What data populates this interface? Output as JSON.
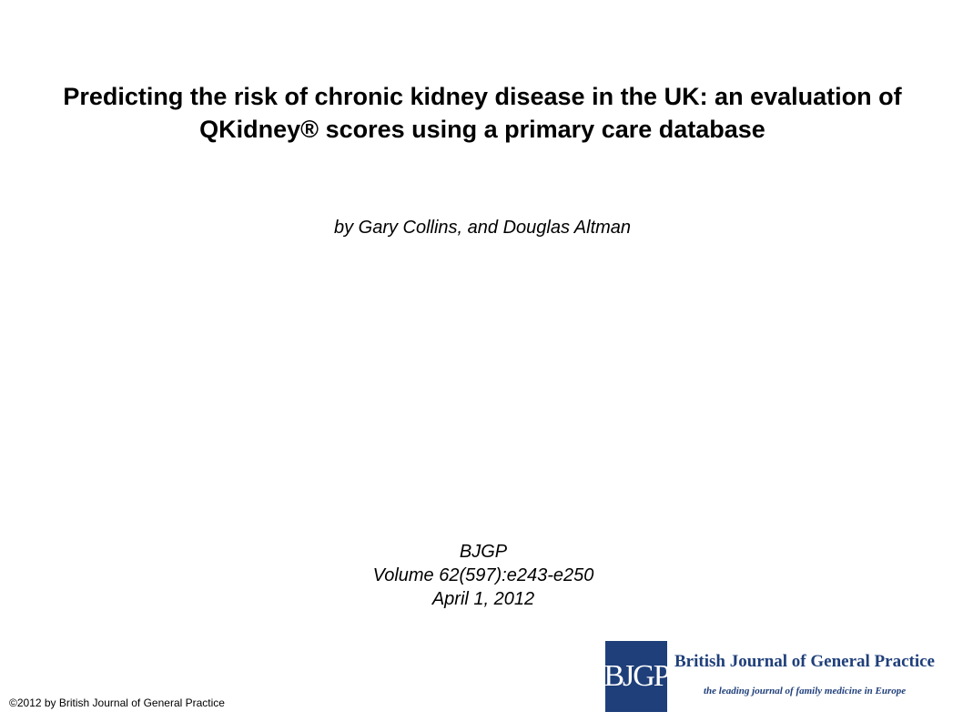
{
  "slide": {
    "title": "Predicting the risk of chronic kidney disease in the UK: an evaluation of QKidney® scores using a primary care database",
    "authors": "by Gary Collins, and Douglas Altman",
    "journal": "BJGP",
    "volume": "Volume 62(597):e243-e250",
    "date": "April 1, 2012",
    "copyright": "©2012 by British Journal of General Practice"
  },
  "logo": {
    "mark": "BJGP",
    "name": "British Journal of General Practice",
    "tagline": "the leading journal of family medicine in Europe",
    "brand_color": "#1f3f7a"
  }
}
